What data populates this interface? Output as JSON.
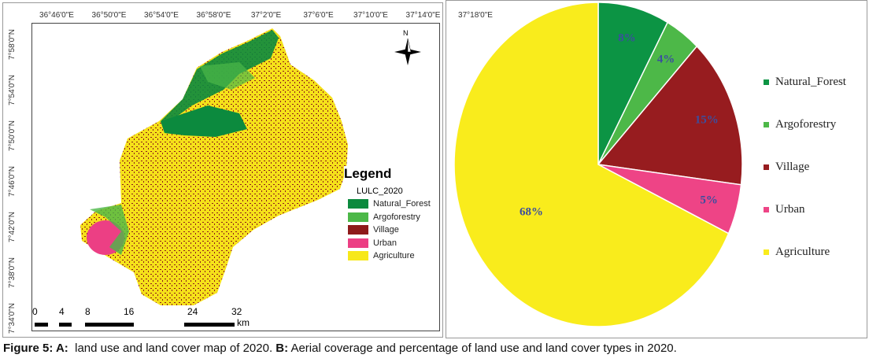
{
  "map": {
    "longitude_labels": [
      "36°46'0\"E",
      "36°50'0\"E",
      "36°54'0\"E",
      "36°58'0\"E",
      "37°2'0\"E",
      "37°6'0\"E",
      "37°10'0\"E",
      "37°14'0\"E",
      "37°18'0\"E"
    ],
    "latitude_labels": [
      "7°58'0\"N",
      "7°54'0\"N",
      "7°50'0\"N",
      "7°46'0\"N",
      "7°42'0\"N",
      "7°38'0\"N",
      "7°34'0\"N"
    ],
    "north_label": "N",
    "legend_title": "Legend",
    "legend_subtitle": "LULC_2020",
    "legend_items": [
      {
        "label": "Natural_Forest",
        "color": "#0c8a3e"
      },
      {
        "label": "Argoforestry",
        "color": "#4cb848"
      },
      {
        "label": "Village",
        "color": "#8e1a1a"
      },
      {
        "label": "Urban",
        "color": "#ec3f84"
      },
      {
        "label": "Agriculture",
        "color": "#f7e81a"
      }
    ],
    "scale_labels": [
      "0",
      "4",
      "8",
      "16",
      "24",
      "32"
    ],
    "scale_unit": "km"
  },
  "chart_data": {
    "type": "pie",
    "title": "",
    "categories": [
      "Natural_Forest",
      "Argoforestry",
      "Village",
      "Urban",
      "Agriculture"
    ],
    "values": [
      8,
      4,
      15,
      5,
      68
    ],
    "labels": [
      "8%",
      "4%",
      "15%",
      "5%",
      "68%"
    ],
    "colors": [
      "#0c9444",
      "#4db848",
      "#971c1f",
      "#ee4486",
      "#f9ec1c"
    ],
    "legend_position": "right",
    "start": "top",
    "direction": "clockwise"
  },
  "caption": {
    "lead": "Figure 5: A:",
    "text_a": "  land use and land cover map of 2020. ",
    "lead_b": "B:",
    "text_b": " Aerial coverage and percentage of land use and land cover types in 2020."
  }
}
